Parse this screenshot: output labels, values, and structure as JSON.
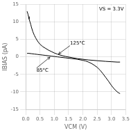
{
  "chart_data": {
    "type": "line",
    "x_label": "VCM (V)",
    "y_label": "IBIAS (pA)",
    "xlim": [
      0,
      3.5
    ],
    "ylim": [
      -15,
      15
    ],
    "xticks": [
      {
        "value": 0.0,
        "label": "0.0"
      },
      0.5,
      {
        "value": 1.0,
        "label": "1.0"
      },
      1.5,
      {
        "value": 2.0,
        "label": "2.0"
      },
      2.5,
      {
        "value": 3.0,
        "label": "3.0"
      },
      3.5
    ],
    "yticks": [
      -15,
      -10,
      -5,
      0,
      5,
      10,
      15
    ],
    "grid": true,
    "series": [
      {
        "color": "#000000",
        "x": [
          0.05,
          0.08,
          0.1,
          0.12,
          0.15,
          0.18,
          0.2,
          0.25,
          0.3,
          0.35,
          0.4,
          0.45,
          0.5,
          0.6,
          0.7,
          0.8,
          0.9,
          1.0,
          1.1,
          1.2,
          1.4,
          1.6,
          1.8,
          2.0,
          2.2,
          2.5,
          2.8,
          3.0,
          3.2,
          3.3
        ],
        "values": [
          13.0,
          12.2,
          11.5,
          10.8,
          10.0,
          9.2,
          8.5,
          7.2,
          6.2,
          5.4,
          4.7,
          4.1,
          3.6,
          2.9,
          2.4,
          1.9,
          1.5,
          1.1,
          0.8,
          0.5,
          0.1,
          -0.2,
          -0.5,
          -0.7,
          -0.9,
          -1.1,
          -1.3,
          -1.4,
          -1.5,
          -1.5
        ]
      },
      {
        "color": "#000000",
        "x": [
          0.05,
          0.1,
          0.2,
          0.3,
          0.4,
          0.5,
          0.6,
          0.7,
          0.8,
          0.9,
          1.0,
          1.1,
          1.2,
          1.4,
          1.6,
          1.8,
          2.0,
          2.1,
          2.2,
          2.3,
          2.4,
          2.5,
          2.6,
          2.7,
          2.8,
          2.9,
          3.0,
          3.1,
          3.2,
          3.25,
          3.3
        ],
        "values": [
          1.0,
          1.0,
          0.9,
          0.8,
          0.7,
          0.6,
          0.5,
          0.4,
          0.3,
          0.2,
          0.1,
          0.0,
          -0.1,
          -0.3,
          -0.5,
          -0.7,
          -1.0,
          -1.2,
          -1.5,
          -1.9,
          -2.4,
          -3.0,
          -3.8,
          -4.8,
          -5.9,
          -7.0,
          -8.2,
          -9.2,
          -10.0,
          -10.3,
          -10.5
        ]
      }
    ],
    "annotations": [
      {
        "text": "125°C",
        "x": 1.55,
        "y": 3.2,
        "arrow_x": 1.15,
        "arrow_y": 0.8
      },
      {
        "text": "85°C",
        "x": 0.38,
        "y": -3.2,
        "arrow_x": 0.85,
        "arrow_y": -0.1
      },
      {
        "text": "VS = 3.3V"
      }
    ]
  }
}
